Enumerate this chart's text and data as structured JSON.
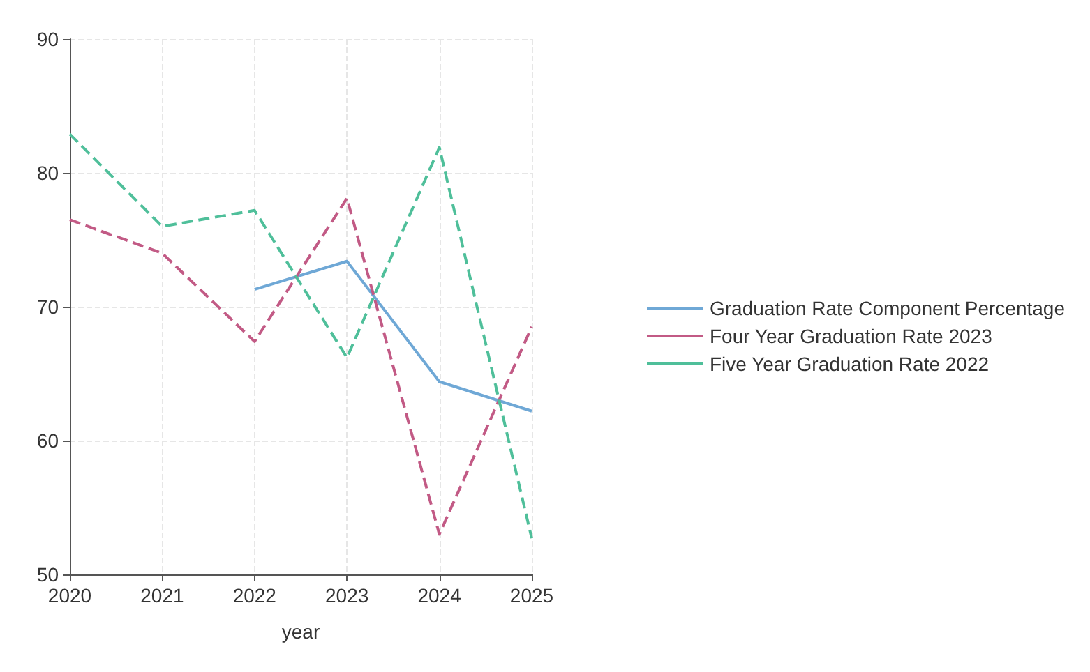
{
  "chart_data": {
    "type": "line",
    "xlabel": "year",
    "x": [
      2020,
      2021,
      2022,
      2023,
      2024,
      2025
    ],
    "xlim": [
      2020,
      2025
    ],
    "xticks": [
      2020,
      2021,
      2022,
      2023,
      2024,
      2025
    ],
    "ylim": [
      50,
      90
    ],
    "yticks": [
      50,
      60,
      70,
      80,
      90
    ],
    "grid": true,
    "legend": "right",
    "marker": "none",
    "series": [
      {
        "name": "Graduation Rate Component Percentage",
        "color": "#6fa8d6",
        "line_style": "solid",
        "values": [
          null,
          null,
          71.3,
          73.4,
          64.4,
          62.2
        ]
      },
      {
        "name": "Four Year Graduation Rate 2023",
        "color": "#c25a85",
        "line_style": "dashed",
        "values": [
          76.5,
          74.0,
          67.4,
          78.1,
          53.0,
          68.5
        ]
      },
      {
        "name": "Five Year Graduation Rate 2022",
        "color": "#4fbf9a",
        "line_style": "dashed",
        "values": [
          82.9,
          76.0,
          77.2,
          66.2,
          81.9,
          52.7
        ]
      }
    ]
  }
}
